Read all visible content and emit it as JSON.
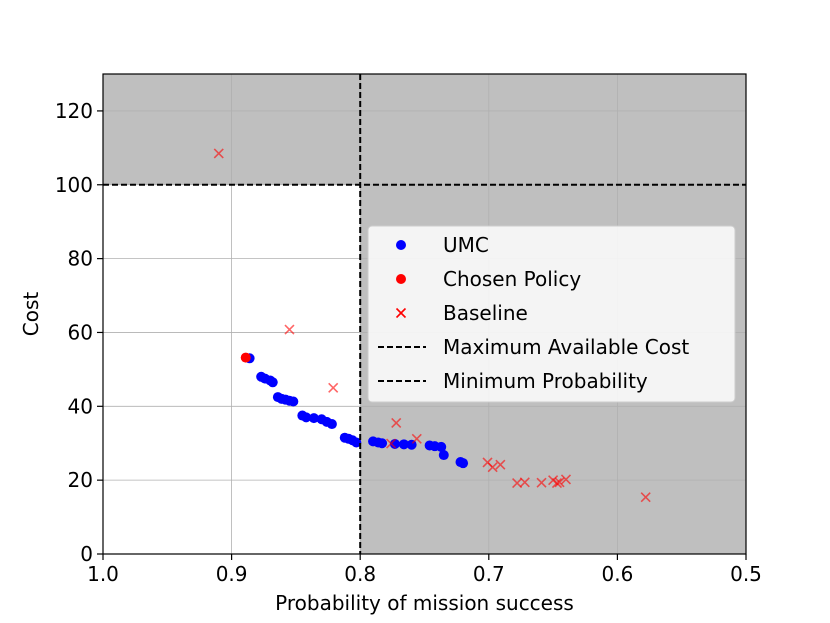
{
  "chart_data": {
    "type": "scatter",
    "xlabel": "Probability of mission success",
    "ylabel": "Cost",
    "xlim": [
      1.0,
      0.5
    ],
    "ylim": [
      0,
      130
    ],
    "x_axis_inverted": true,
    "xticks": [
      1.0,
      0.9,
      0.8,
      0.7,
      0.6,
      0.5
    ],
    "xtick_labels": [
      "1.0",
      "0.9",
      "0.8",
      "0.7",
      "0.6",
      "0.5"
    ],
    "yticks": [
      0,
      20,
      40,
      60,
      80,
      100,
      120
    ],
    "ytick_labels": [
      "0",
      "20",
      "40",
      "60",
      "80",
      "100",
      "120"
    ],
    "grid": true,
    "legend_position": "center-right",
    "shaded_region_color": "#bfbfbf",
    "thresholds": {
      "maximum_available_cost": 100,
      "minimum_probability": 0.8
    },
    "series": [
      {
        "name": "UMC",
        "marker": "circle",
        "color": "#0000ff",
        "points": [
          [
            0.886,
            53.0
          ],
          [
            0.877,
            48.0
          ],
          [
            0.874,
            47.5
          ],
          [
            0.87,
            47.0
          ],
          [
            0.868,
            46.5
          ],
          [
            0.864,
            42.5
          ],
          [
            0.861,
            42.0
          ],
          [
            0.858,
            41.8
          ],
          [
            0.855,
            41.5
          ],
          [
            0.852,
            41.3
          ],
          [
            0.845,
            37.5
          ],
          [
            0.842,
            37.0
          ],
          [
            0.836,
            36.8
          ],
          [
            0.83,
            36.5
          ],
          [
            0.826,
            35.8
          ],
          [
            0.822,
            35.2
          ],
          [
            0.812,
            31.5
          ],
          [
            0.809,
            31.2
          ],
          [
            0.806,
            30.8
          ],
          [
            0.803,
            30.2
          ],
          [
            0.79,
            30.5
          ],
          [
            0.786,
            30.2
          ],
          [
            0.783,
            30.0
          ],
          [
            0.773,
            29.8
          ],
          [
            0.766,
            29.7
          ],
          [
            0.76,
            29.6
          ],
          [
            0.746,
            29.4
          ],
          [
            0.742,
            29.2
          ],
          [
            0.737,
            29.0
          ],
          [
            0.735,
            26.8
          ],
          [
            0.722,
            24.9
          ],
          [
            0.72,
            24.6
          ]
        ]
      },
      {
        "name": "Chosen Policy",
        "marker": "circle",
        "color": "#ff0000",
        "points": [
          [
            0.889,
            53.2
          ]
        ]
      },
      {
        "name": "Baseline",
        "marker": "x",
        "color": "#ff0000",
        "points": [
          [
            0.91,
            108.5
          ],
          [
            0.855,
            60.8
          ],
          [
            0.821,
            45.0
          ],
          [
            0.772,
            35.5
          ],
          [
            0.776,
            29.9
          ],
          [
            0.756,
            31.2
          ],
          [
            0.701,
            24.8
          ],
          [
            0.697,
            23.5
          ],
          [
            0.691,
            24.2
          ],
          [
            0.678,
            19.2
          ],
          [
            0.672,
            19.4
          ],
          [
            0.659,
            19.3
          ],
          [
            0.65,
            20.0
          ],
          [
            0.647,
            19.2
          ],
          [
            0.645,
            19.4
          ],
          [
            0.64,
            20.2
          ],
          [
            0.578,
            15.4
          ]
        ]
      }
    ],
    "reference_lines": [
      {
        "name": "Maximum Available Cost",
        "orientation": "horizontal",
        "value": 100,
        "style": "dashed",
        "color": "#000000"
      },
      {
        "name": "Minimum Probability",
        "orientation": "vertical",
        "value": 0.8,
        "style": "dashed",
        "color": "#000000"
      }
    ]
  }
}
